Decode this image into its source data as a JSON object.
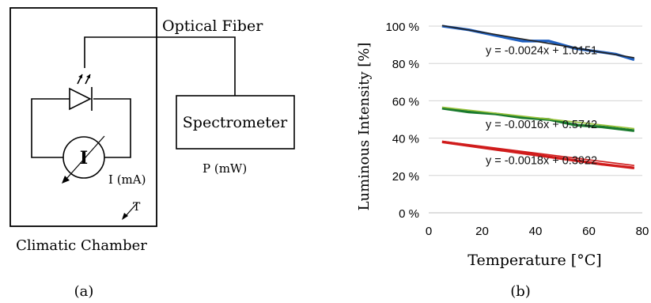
{
  "diagram": {
    "optical_fiber_label": "Optical Fiber",
    "spectrometer_label": "Spectrometer",
    "current_symbol": "I",
    "current_unit_label": "I (mA)",
    "power_label": "P (mW)",
    "temperature_symbol": "T",
    "chamber_label": "Climatic Chamber",
    "panel_label": "(a)"
  },
  "chart": {
    "panel_label": "(b)"
  },
  "chart_data": {
    "type": "line",
    "title": "",
    "xlabel": "Temperature [°C]",
    "ylabel": "Luminous Intensity [%]",
    "xlim": [
      0,
      80
    ],
    "ylim": [
      0,
      100
    ],
    "x_ticks": [
      "0",
      "20",
      "40",
      "60",
      "80"
    ],
    "y_ticks": [
      "0 %",
      "20 %",
      "40 %",
      "60 %",
      "80 %",
      "100 %"
    ],
    "grid": "horizontal",
    "series": [
      {
        "color": "#1f5fbf",
        "trend_color": "#222222",
        "trend_equation": "y = -0.0024x + 1.0151",
        "x": [
          5,
          15,
          25,
          35,
          40,
          45,
          50,
          55,
          60,
          65,
          70,
          77
        ],
        "y": [
          100,
          98,
          95,
          92,
          92,
          92,
          90,
          88,
          87,
          86,
          85,
          82
        ]
      },
      {
        "color": "#1a7a2e",
        "trend_color": "#9ac33a",
        "trend_equation": "y = -0.0016x + 0.5742",
        "x": [
          5,
          15,
          25,
          35,
          45,
          55,
          65,
          77
        ],
        "y": [
          56,
          54,
          53,
          51,
          50,
          47,
          46,
          44
        ]
      },
      {
        "color": "#d01c1c",
        "trend_color": "#d01c1c",
        "trend_equation": "y = -0.0018x + 0.3922",
        "x": [
          5,
          15,
          25,
          35,
          45,
          55,
          65,
          77
        ],
        "y": [
          38,
          36,
          34,
          32,
          30,
          28,
          26,
          24
        ]
      }
    ]
  }
}
